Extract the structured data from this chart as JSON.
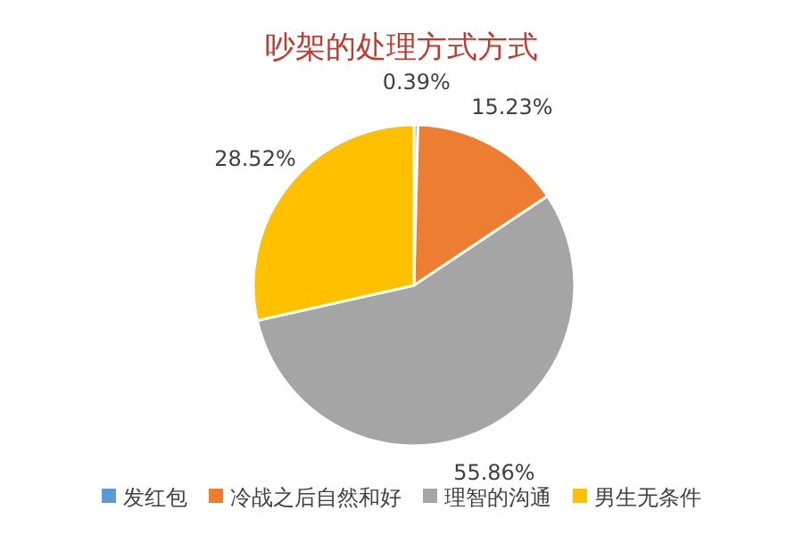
{
  "chart_data": {
    "type": "pie",
    "title": "吵架的处理方式方式",
    "categories": [
      "发红包",
      "冷战之后自然和好",
      "理智的沟通",
      "男生无条件"
    ],
    "values": [
      0.39,
      15.23,
      55.86,
      28.52
    ],
    "colors": [
      "#5b9bd5",
      "#ed7d31",
      "#a5a5a5",
      "#ffc000"
    ],
    "value_labels": [
      "0.39%",
      "15.23%",
      "55.86%",
      "28.52%"
    ],
    "legend": "bottom"
  }
}
